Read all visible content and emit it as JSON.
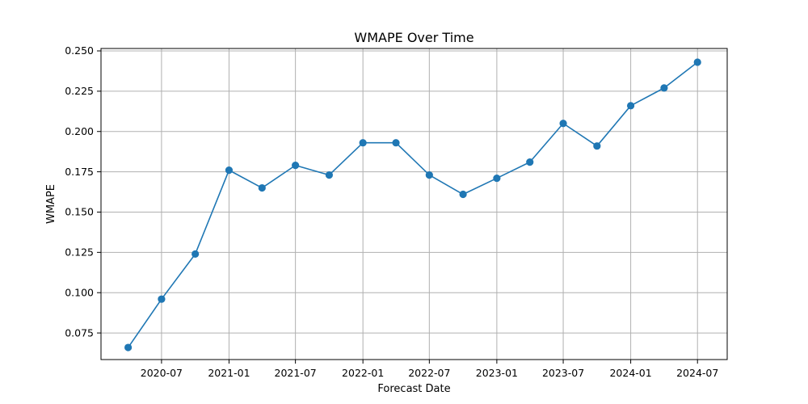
{
  "chart_data": {
    "type": "line",
    "title": "WMAPE Over Time",
    "xlabel": "Forecast Date",
    "ylabel": "WMAPE",
    "x_tick_labels": [
      "2020-07",
      "2021-01",
      "2021-07",
      "2022-01",
      "2022-07",
      "2023-01",
      "2023-07",
      "2024-01",
      "2024-07"
    ],
    "y_ticks": [
      0.075,
      0.1,
      0.125,
      0.15,
      0.175,
      0.2,
      0.225,
      0.25
    ],
    "y_tick_labels": [
      "0.075",
      "0.100",
      "0.125",
      "0.150",
      "0.175",
      "0.200",
      "0.225",
      "0.250"
    ],
    "xlim": [
      "2020-01-18",
      "2024-09-20"
    ],
    "ylim": [
      0.0585,
      0.2515
    ],
    "grid": true,
    "series": [
      {
        "color": "#1f77b4",
        "marker": "circle",
        "x": [
          "2020-04-01",
          "2020-07-01",
          "2020-10-01",
          "2021-01-01",
          "2021-04-01",
          "2021-07-01",
          "2021-10-01",
          "2022-01-01",
          "2022-04-01",
          "2022-07-01",
          "2022-10-01",
          "2023-01-01",
          "2023-04-01",
          "2023-07-01",
          "2023-10-01",
          "2024-01-01",
          "2024-04-01",
          "2024-07-01"
        ],
        "y": [
          0.066,
          0.096,
          0.124,
          0.176,
          0.165,
          0.179,
          0.173,
          0.193,
          0.193,
          0.173,
          0.161,
          0.171,
          0.181,
          0.205,
          0.191,
          0.216,
          0.227,
          0.243
        ]
      }
    ]
  }
}
